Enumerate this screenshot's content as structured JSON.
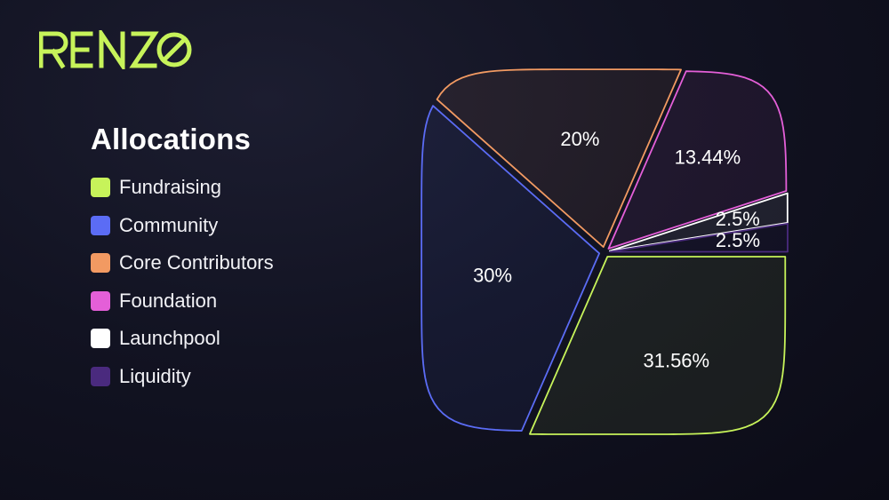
{
  "brand": {
    "name": "RENZO",
    "color": "#c7f35a"
  },
  "chart_data": {
    "type": "pie",
    "title": "Allocations",
    "legend_position": "left",
    "slices": [
      {
        "label": "Fundraising",
        "value": 31.56,
        "display": "31.56%",
        "color": "#c7f35a"
      },
      {
        "label": "Community",
        "value": 30,
        "display": "30%",
        "color": "#5b6cf5"
      },
      {
        "label": "Core Contributors",
        "value": 20,
        "display": "20%",
        "color": "#f29a62"
      },
      {
        "label": "Foundation",
        "value": 13.44,
        "display": "13.44%",
        "color": "#e45fd8"
      },
      {
        "label": "Launchpool",
        "value": 2.5,
        "display": "2.5%",
        "color": "#ffffff"
      },
      {
        "label": "Liquidity",
        "value": 2.5,
        "display": "2.5%",
        "color": "#4a2a7e"
      }
    ]
  }
}
